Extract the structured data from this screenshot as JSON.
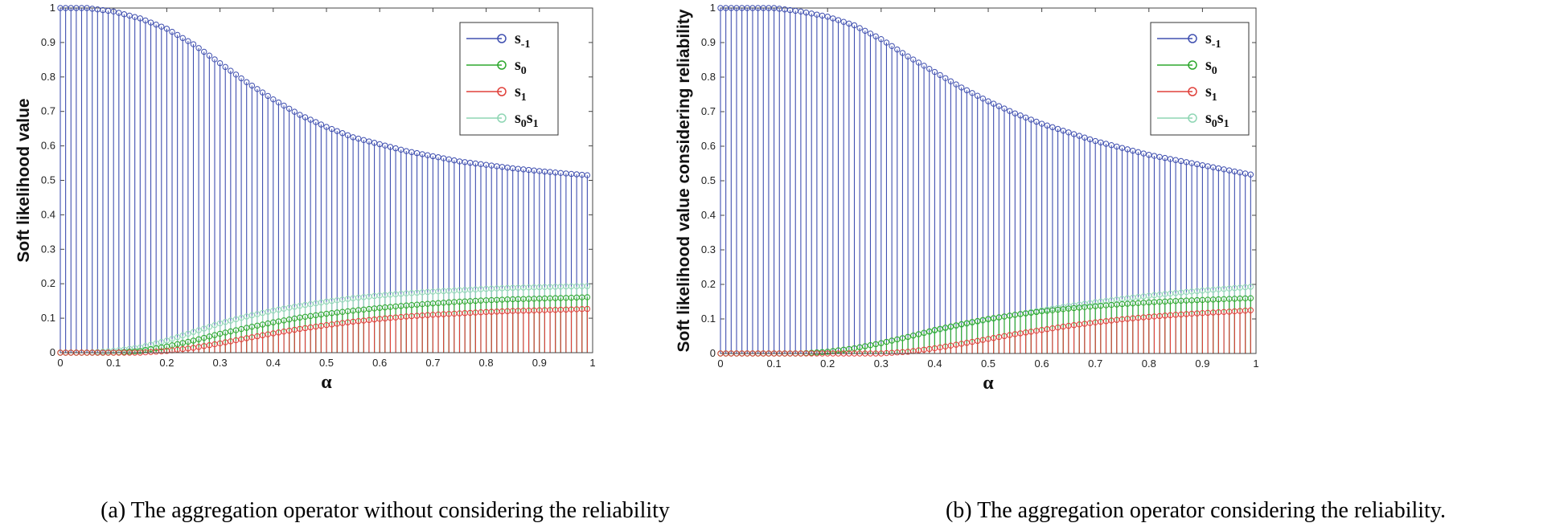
{
  "chart_data": [
    {
      "type": "stem",
      "id": "a",
      "title": "",
      "caption": "(a) The aggregation operator without considering the reliability",
      "xlabel": "α",
      "ylabel": "Soft likelihood value",
      "xlim": [
        0,
        1
      ],
      "ylim": [
        0,
        1
      ],
      "xticks": [
        "0",
        "0.1",
        "0.2",
        "0.3",
        "0.4",
        "0.5",
        "0.6",
        "0.7",
        "0.8",
        "0.9",
        "1"
      ],
      "yticks": [
        "0",
        "0.1",
        "0.2",
        "0.3",
        "0.4",
        "0.5",
        "0.6",
        "0.7",
        "0.8",
        "0.9",
        "1"
      ],
      "x": {
        "start": 0.0,
        "step": 0.01,
        "count": 100
      },
      "legend_position": "top-right",
      "series": [
        {
          "name": "s-1",
          "base": "s",
          "sub": "-1",
          "color": "#4050b0",
          "keypoints": [
            [
              0,
              1.0
            ],
            [
              0.05,
              1.0
            ],
            [
              0.1,
              0.99
            ],
            [
              0.15,
              0.97
            ],
            [
              0.2,
              0.94
            ],
            [
              0.25,
              0.895
            ],
            [
              0.3,
              0.84
            ],
            [
              0.35,
              0.785
            ],
            [
              0.4,
              0.735
            ],
            [
              0.45,
              0.69
            ],
            [
              0.5,
              0.655
            ],
            [
              0.55,
              0.625
            ],
            [
              0.6,
              0.605
            ],
            [
              0.65,
              0.585
            ],
            [
              0.7,
              0.57
            ],
            [
              0.75,
              0.555
            ],
            [
              0.8,
              0.545
            ],
            [
              0.85,
              0.535
            ],
            [
              0.9,
              0.527
            ],
            [
              0.95,
              0.52
            ],
            [
              0.99,
              0.515
            ]
          ]
        },
        {
          "name": "s0",
          "base": "s",
          "sub": "0",
          "color": "#2ea82e",
          "keypoints": [
            [
              0,
              0
            ],
            [
              0.1,
              0.0
            ],
            [
              0.15,
              0.005
            ],
            [
              0.2,
              0.018
            ],
            [
              0.25,
              0.035
            ],
            [
              0.3,
              0.055
            ],
            [
              0.35,
              0.072
            ],
            [
              0.4,
              0.088
            ],
            [
              0.45,
              0.102
            ],
            [
              0.5,
              0.113
            ],
            [
              0.55,
              0.122
            ],
            [
              0.6,
              0.13
            ],
            [
              0.65,
              0.137
            ],
            [
              0.7,
              0.143
            ],
            [
              0.75,
              0.148
            ],
            [
              0.8,
              0.152
            ],
            [
              0.85,
              0.155
            ],
            [
              0.9,
              0.157
            ],
            [
              0.95,
              0.159
            ],
            [
              0.99,
              0.161
            ]
          ]
        },
        {
          "name": "s1",
          "base": "s",
          "sub": "1",
          "color": "#e0403a",
          "keypoints": [
            [
              0,
              0
            ],
            [
              0.15,
              0.0
            ],
            [
              0.2,
              0.005
            ],
            [
              0.25,
              0.014
            ],
            [
              0.3,
              0.027
            ],
            [
              0.35,
              0.042
            ],
            [
              0.4,
              0.056
            ],
            [
              0.45,
              0.069
            ],
            [
              0.5,
              0.08
            ],
            [
              0.55,
              0.09
            ],
            [
              0.6,
              0.098
            ],
            [
              0.65,
              0.105
            ],
            [
              0.7,
              0.11
            ],
            [
              0.75,
              0.114
            ],
            [
              0.8,
              0.118
            ],
            [
              0.85,
              0.121
            ],
            [
              0.9,
              0.123
            ],
            [
              0.95,
              0.125
            ],
            [
              0.99,
              0.127
            ]
          ]
        },
        {
          "name": "s0s1",
          "base": "s",
          "sub": "0",
          "base2": "s",
          "sub2": "1",
          "color": "#8fd6b4",
          "keypoints": [
            [
              0,
              0
            ],
            [
              0.05,
              0.0
            ],
            [
              0.1,
              0.005
            ],
            [
              0.15,
              0.015
            ],
            [
              0.2,
              0.035
            ],
            [
              0.25,
              0.06
            ],
            [
              0.3,
              0.085
            ],
            [
              0.35,
              0.105
            ],
            [
              0.4,
              0.122
            ],
            [
              0.45,
              0.136
            ],
            [
              0.5,
              0.148
            ],
            [
              0.55,
              0.158
            ],
            [
              0.6,
              0.166
            ],
            [
              0.65,
              0.172
            ],
            [
              0.7,
              0.177
            ],
            [
              0.75,
              0.181
            ],
            [
              0.8,
              0.185
            ],
            [
              0.85,
              0.188
            ],
            [
              0.9,
              0.19
            ],
            [
              0.95,
              0.192
            ],
            [
              0.99,
              0.193
            ]
          ]
        }
      ]
    },
    {
      "type": "stem",
      "id": "b",
      "title": "",
      "caption": "(b) The aggregation operator considering the reliability.",
      "xlabel": "α",
      "ylabel": "Soft likelihood value considering reliability",
      "xlim": [
        0,
        1
      ],
      "ylim": [
        0,
        1
      ],
      "xticks": [
        "0",
        "0.1",
        "0.2",
        "0.3",
        "0.4",
        "0.5",
        "0.6",
        "0.7",
        "0.8",
        "0.9",
        "1"
      ],
      "yticks": [
        "0",
        "0.1",
        "0.2",
        "0.3",
        "0.4",
        "0.5",
        "0.6",
        "0.7",
        "0.8",
        "0.9",
        "1"
      ],
      "x": {
        "start": 0.0,
        "step": 0.01,
        "count": 100
      },
      "legend_position": "top-right",
      "series": [
        {
          "name": "s-1",
          "base": "s",
          "sub": "-1",
          "color": "#4050b0",
          "keypoints": [
            [
              0,
              1.0
            ],
            [
              0.1,
              1.0
            ],
            [
              0.15,
              0.99
            ],
            [
              0.2,
              0.975
            ],
            [
              0.25,
              0.95
            ],
            [
              0.3,
              0.91
            ],
            [
              0.35,
              0.86
            ],
            [
              0.4,
              0.815
            ],
            [
              0.45,
              0.77
            ],
            [
              0.5,
              0.73
            ],
            [
              0.55,
              0.695
            ],
            [
              0.6,
              0.665
            ],
            [
              0.65,
              0.64
            ],
            [
              0.7,
              0.615
            ],
            [
              0.75,
              0.595
            ],
            [
              0.8,
              0.575
            ],
            [
              0.85,
              0.56
            ],
            [
              0.9,
              0.545
            ],
            [
              0.95,
              0.53
            ],
            [
              0.99,
              0.518
            ]
          ]
        },
        {
          "name": "s0",
          "base": "s",
          "sub": "0",
          "color": "#2ea82e",
          "keypoints": [
            [
              0,
              0
            ],
            [
              0.15,
              0.0
            ],
            [
              0.2,
              0.005
            ],
            [
              0.25,
              0.015
            ],
            [
              0.3,
              0.03
            ],
            [
              0.35,
              0.048
            ],
            [
              0.4,
              0.068
            ],
            [
              0.45,
              0.085
            ],
            [
              0.5,
              0.1
            ],
            [
              0.55,
              0.112
            ],
            [
              0.6,
              0.122
            ],
            [
              0.65,
              0.13
            ],
            [
              0.7,
              0.137
            ],
            [
              0.75,
              0.143
            ],
            [
              0.8,
              0.148
            ],
            [
              0.85,
              0.152
            ],
            [
              0.9,
              0.155
            ],
            [
              0.95,
              0.158
            ],
            [
              0.99,
              0.16
            ]
          ]
        },
        {
          "name": "s1",
          "base": "s",
          "sub": "1",
          "color": "#e0403a",
          "keypoints": [
            [
              0,
              0
            ],
            [
              0.3,
              0.0
            ],
            [
              0.35,
              0.005
            ],
            [
              0.4,
              0.015
            ],
            [
              0.45,
              0.028
            ],
            [
              0.5,
              0.042
            ],
            [
              0.55,
              0.056
            ],
            [
              0.6,
              0.068
            ],
            [
              0.65,
              0.08
            ],
            [
              0.7,
              0.09
            ],
            [
              0.75,
              0.099
            ],
            [
              0.8,
              0.106
            ],
            [
              0.85,
              0.112
            ],
            [
              0.9,
              0.117
            ],
            [
              0.95,
              0.121
            ],
            [
              0.99,
              0.125
            ]
          ]
        },
        {
          "name": "s0s1",
          "base": "s",
          "sub": "0",
          "base2": "s",
          "sub2": "1",
          "color": "#8fd6b4",
          "keypoints": [
            [
              0,
              0
            ],
            [
              0.15,
              0.0
            ],
            [
              0.2,
              0.005
            ],
            [
              0.25,
              0.015
            ],
            [
              0.3,
              0.03
            ],
            [
              0.35,
              0.048
            ],
            [
              0.4,
              0.066
            ],
            [
              0.45,
              0.083
            ],
            [
              0.5,
              0.098
            ],
            [
              0.55,
              0.112
            ],
            [
              0.6,
              0.125
            ],
            [
              0.65,
              0.137
            ],
            [
              0.7,
              0.148
            ],
            [
              0.75,
              0.158
            ],
            [
              0.8,
              0.167
            ],
            [
              0.85,
              0.175
            ],
            [
              0.9,
              0.182
            ],
            [
              0.95,
              0.188
            ],
            [
              0.99,
              0.193
            ]
          ]
        }
      ]
    }
  ]
}
